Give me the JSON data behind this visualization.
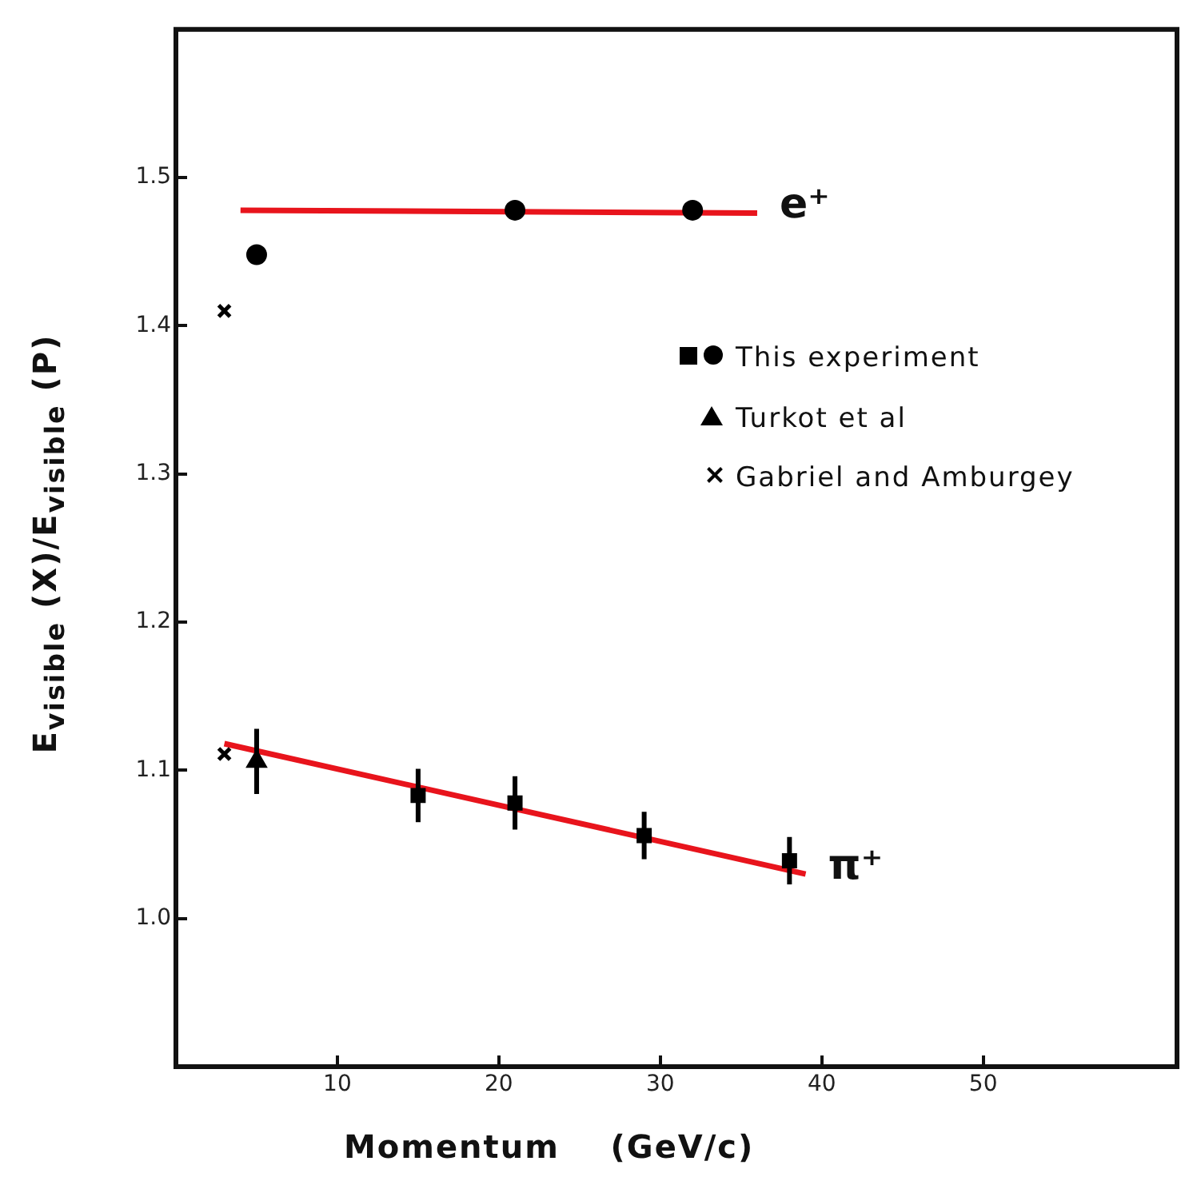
{
  "chart_data": {
    "type": "scatter",
    "xlabel": "Momentum    (GeV/c)",
    "ylabel": "E$_{visible}$ (X)/E$_{visible}$ (P)",
    "xlim": [
      0,
      62
    ],
    "xticks": [
      10,
      20,
      30,
      40,
      50
    ],
    "ylim": [
      0.9,
      1.6
    ],
    "yticks": [
      {
        "value": 1,
        "label": "1.0"
      },
      1.1,
      1.2,
      1.3,
      1.4,
      1.5
    ],
    "legend": "right",
    "series": [
      {
        "name": "This experiment",
        "color": "#000000",
        "marker": "circle",
        "x": [
          5,
          21,
          32
        ],
        "values": [
          1.448,
          1.478,
          1.478
        ]
      },
      {
        "color": "#000000",
        "marker": "square",
        "x": [
          15,
          21,
          29,
          38
        ],
        "values": [
          1.083,
          1.078,
          1.056,
          1.039
        ],
        "errors": [
          0.018,
          0.018,
          0.016,
          0.016
        ]
      },
      {
        "name": "Turkot et al",
        "color": "#000000",
        "marker": "triangle",
        "x": [
          5
        ],
        "values": [
          1.106
        ],
        "errors": [
          0.022
        ]
      },
      {
        "name": "Gabriel and Amburgey",
        "color": "#000000",
        "marker": "cross",
        "x": [
          3,
          3
        ],
        "values": [
          1.41,
          1.111
        ]
      },
      {
        "type": "line",
        "color": "#e8141c",
        "marker": "none",
        "x": [
          4,
          36
        ],
        "values": [
          1.478,
          1.476
        ]
      },
      {
        "type": "line",
        "color": "#e8141c",
        "marker": "none",
        "x": [
          3,
          39
        ],
        "values": [
          1.118,
          1.03
        ]
      }
    ],
    "annotations": [
      {
        "text": "e⁺",
        "x": 36,
        "y": 1.476
      },
      {
        "text": "π⁺",
        "x": 39,
        "y": 1.03
      }
    ]
  }
}
